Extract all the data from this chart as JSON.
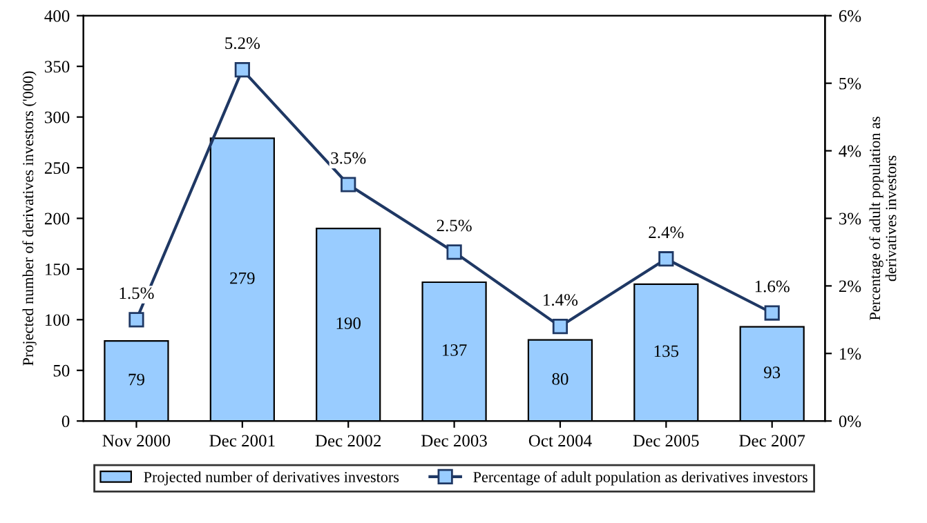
{
  "chart_data": {
    "type": "bar",
    "ylabel": "Projected number of derivatives investors ('000)",
    "y2label": "Percentage of adult population as\nderivatives investors",
    "categories": [
      "Nov 2000",
      "Dec 2001",
      "Dec 2002",
      "Dec 2003",
      "Oct 2004",
      "Dec 2005",
      "Dec 2007"
    ],
    "series": [
      {
        "name": "Projected number of derivatives investors",
        "color": "#99ccff",
        "values": [
          79,
          279,
          190,
          137,
          80,
          135,
          93
        ]
      },
      {
        "name": "Percentage of adult population as derivatives investors",
        "type": "line",
        "axis": "y2",
        "color": "#1f3864",
        "marker": "square",
        "values": [
          1.5,
          5.2,
          3.5,
          2.5,
          1.4,
          2.4,
          1.6
        ],
        "value_labels": [
          "1.5%",
          "5.2%",
          "3.5%",
          "2.5%",
          "1.4%",
          "2.4%",
          "1.6%"
        ]
      }
    ],
    "data_labels": true,
    "ylim": [
      0,
      400
    ],
    "yticks": [
      0,
      50,
      100,
      150,
      200,
      250,
      300,
      350,
      400
    ],
    "y2lim": [
      0,
      6
    ],
    "y2ticks": [
      {
        "value": 0,
        "label": "0%"
      },
      {
        "value": 1,
        "label": "1%"
      },
      {
        "value": 2,
        "label": "2%"
      },
      {
        "value": 3,
        "label": "3%"
      },
      {
        "value": 4,
        "label": "4%"
      },
      {
        "value": 5,
        "label": "5%"
      },
      {
        "value": 6,
        "label": "6%"
      }
    ],
    "grid": false,
    "legend": "bottom"
  }
}
